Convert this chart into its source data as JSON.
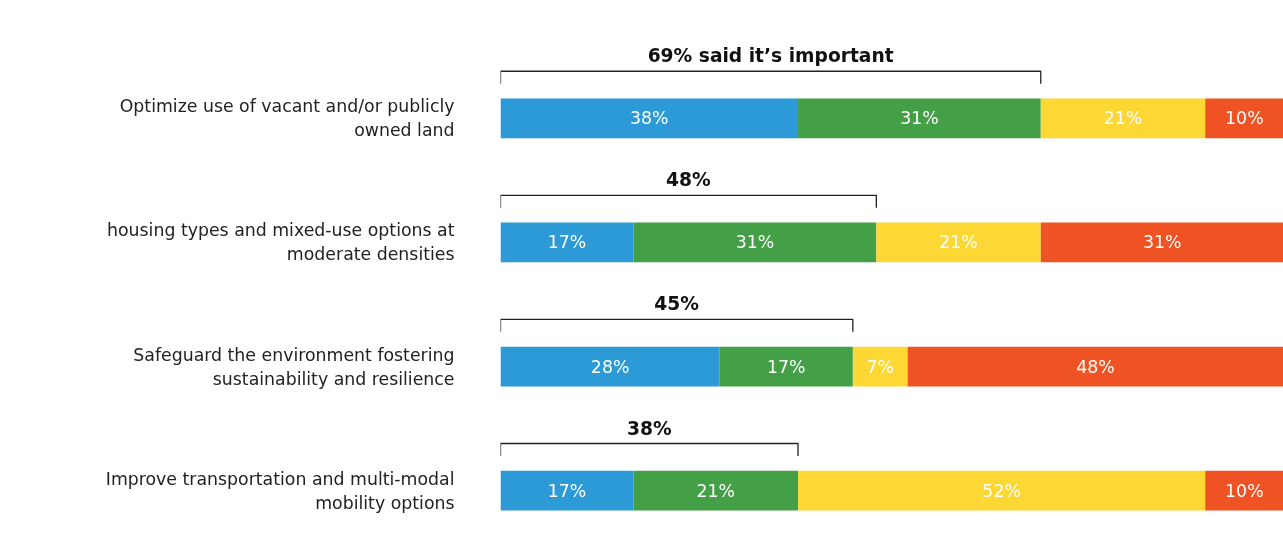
{
  "chart_data": {
    "type": "bar",
    "orientation": "horizontal",
    "stacked": true,
    "tick_labels": "y",
    "categories": [
      "Optimize use of vacant and/or publicly owned land",
      "housing types and mixed-use options at moderate densities",
      "Safeguard the environment fostering sustainability and resilience",
      "Improve transportation and multi-modal mobility options"
    ],
    "series": [
      {
        "color": "#2b9ad6",
        "values": [
          38,
          17,
          28,
          17
        ],
        "value_labels": [
          "38%",
          "17%",
          "28%",
          "17%"
        ]
      },
      {
        "color": "#43a047",
        "values": [
          31,
          31,
          17,
          21
        ],
        "value_labels": [
          "31%",
          "31%",
          "17%",
          "21%"
        ]
      },
      {
        "color": "#fdd835",
        "values": [
          21,
          21,
          7,
          52
        ],
        "value_labels": [
          "21%",
          "21%",
          "7%",
          "52%"
        ]
      },
      {
        "color": "#f05323",
        "values": [
          10,
          31,
          48,
          10
        ],
        "value_labels": [
          "10%",
          "31%",
          "48%",
          "10%"
        ]
      }
    ],
    "annotations": [
      "69% said it’s important",
      "48%",
      "45%",
      "38%"
    ]
  }
}
